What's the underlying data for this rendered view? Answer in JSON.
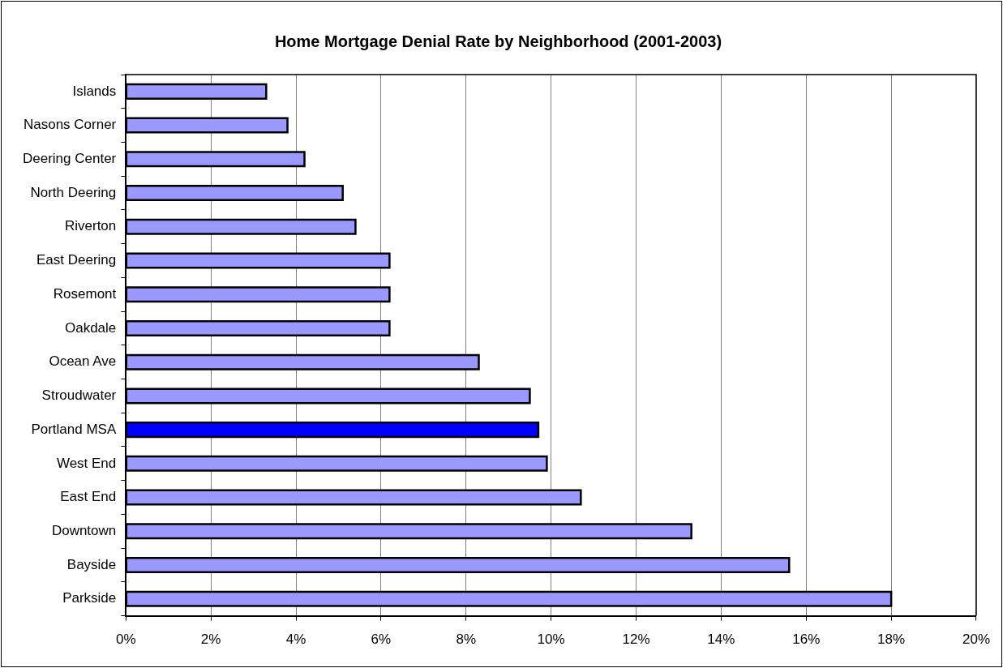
{
  "chart_data": {
    "type": "bar",
    "orientation": "horizontal",
    "title": "Home Mortgage Denial Rate by Neighborhood (2001-2003)",
    "categories": [
      "Islands",
      "Nasons Corner",
      "Deering Center",
      "North Deering",
      "Riverton",
      "East Deering",
      "Rosemont",
      "Oakdale",
      "Ocean Ave",
      "Stroudwater",
      "Portland MSA",
      "West End",
      "East End",
      "Downtown",
      "Bayside",
      "Parkside"
    ],
    "values": [
      3.3,
      3.8,
      4.2,
      5.1,
      5.4,
      6.2,
      6.2,
      6.2,
      8.3,
      9.5,
      9.7,
      9.9,
      10.7,
      13.3,
      15.6,
      18.0
    ],
    "colors": [
      "#9999ff",
      "#9999ff",
      "#9999ff",
      "#9999ff",
      "#9999ff",
      "#9999ff",
      "#9999ff",
      "#9999ff",
      "#9999ff",
      "#9999ff",
      "#0000ff",
      "#9999ff",
      "#9999ff",
      "#9999ff",
      "#9999ff",
      "#9999ff"
    ],
    "xlim": [
      0,
      20
    ],
    "xticks": [
      {
        "value": 0,
        "label": "0%"
      },
      {
        "value": 2,
        "label": "2%"
      },
      {
        "value": 4,
        "label": "4%"
      },
      {
        "value": 6,
        "label": "6%"
      },
      {
        "value": 8,
        "label": "8%"
      },
      {
        "value": 10,
        "label": "10%"
      },
      {
        "value": 12,
        "label": "12%"
      },
      {
        "value": 14,
        "label": "14%"
      },
      {
        "value": 16,
        "label": "16%"
      },
      {
        "value": 18,
        "label": "18%"
      },
      {
        "value": 20,
        "label": "20%"
      }
    ],
    "grid": "x",
    "legend": false
  }
}
